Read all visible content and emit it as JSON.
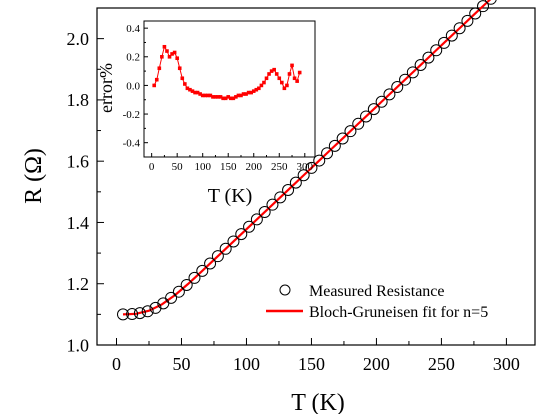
{
  "chart_data": [
    {
      "type": "scatter",
      "xlabel": "T (K)",
      "ylabel": "R (Ω)",
      "xlim": [
        -15,
        322
      ],
      "ylim": [
        1.0,
        2.1
      ],
      "xticks": [
        "0",
        "50",
        "100",
        "150",
        "200",
        "250",
        "300"
      ],
      "yticks": [
        "1.0",
        "1.2",
        "1.4",
        "1.6",
        "1.8",
        "2.0"
      ],
      "grid": false,
      "legend_position": "bottom-right",
      "series": [
        {
          "name": "Measured Resistance",
          "marker": "open-circle",
          "color": "#000000",
          "x": [
            5,
            12,
            18,
            24,
            30,
            36,
            42,
            48,
            54,
            60,
            66,
            72,
            78,
            84,
            90,
            96,
            102,
            108,
            114,
            120,
            126,
            132,
            138,
            144,
            150,
            156,
            162,
            168,
            174,
            180,
            186,
            192,
            198,
            204,
            210,
            216,
            222,
            228,
            234,
            240,
            246,
            252,
            258,
            264,
            270,
            276,
            282,
            288,
            293
          ],
          "y": [
            1.1,
            1.101,
            1.104,
            1.11,
            1.121,
            1.136,
            1.154,
            1.174,
            1.196,
            1.219,
            1.242,
            1.266,
            1.29,
            1.314,
            1.338,
            1.362,
            1.386,
            1.41,
            1.434,
            1.458,
            1.482,
            1.506,
            1.53,
            1.554,
            1.578,
            1.602,
            1.626,
            1.65,
            1.674,
            1.698,
            1.722,
            1.746,
            1.77,
            1.794,
            1.818,
            1.842,
            1.866,
            1.89,
            1.914,
            1.938,
            1.962,
            1.986,
            2.01,
            2.034,
            2.058,
            2.082,
            2.106,
            2.13,
            2.15
          ]
        },
        {
          "name": "Bloch-Gruneisen fit for n=5",
          "marker": "line",
          "color": "#ff0000",
          "x": [
            5,
            15,
            25,
            35,
            45,
            55,
            65,
            75,
            85,
            95,
            105,
            115,
            125,
            135,
            145,
            155,
            165,
            175,
            185,
            195,
            205,
            215,
            225,
            235,
            245,
            255,
            265,
            275,
            285,
            293
          ],
          "y": [
            1.1,
            1.102,
            1.112,
            1.133,
            1.163,
            1.199,
            1.238,
            1.278,
            1.318,
            1.358,
            1.398,
            1.438,
            1.478,
            1.518,
            1.558,
            1.598,
            1.638,
            1.678,
            1.718,
            1.758,
            1.798,
            1.838,
            1.878,
            1.918,
            1.958,
            1.998,
            2.038,
            2.078,
            2.118,
            2.15
          ]
        }
      ]
    },
    {
      "type": "scatter",
      "xlabel": "T (K)",
      "ylabel": "error%",
      "xlim": [
        -15,
        320
      ],
      "ylim": [
        -0.5,
        0.45
      ],
      "xticks": [
        "0",
        "50",
        "100",
        "150",
        "200",
        "250",
        "300"
      ],
      "yticks": [
        "-0.4",
        "-0.2",
        "0.0",
        "0.2",
        "0.4"
      ],
      "grid": false,
      "series": [
        {
          "marker": "filled-square-line",
          "color": "#ff0000",
          "x": [
            5,
            10,
            15,
            20,
            25,
            30,
            35,
            40,
            45,
            50,
            55,
            60,
            65,
            70,
            75,
            80,
            85,
            90,
            95,
            100,
            105,
            110,
            115,
            120,
            125,
            130,
            135,
            140,
            145,
            150,
            155,
            160,
            165,
            170,
            175,
            180,
            185,
            190,
            195,
            200,
            205,
            210,
            215,
            220,
            225,
            230,
            235,
            240,
            245,
            250,
            255,
            260,
            265,
            270,
            275,
            280,
            285,
            290
          ],
          "y": [
            0.0,
            0.04,
            0.12,
            0.2,
            0.27,
            0.24,
            0.2,
            0.22,
            0.23,
            0.19,
            0.12,
            0.05,
            0.01,
            -0.02,
            -0.03,
            -0.04,
            -0.05,
            -0.05,
            -0.06,
            -0.07,
            -0.07,
            -0.07,
            -0.07,
            -0.08,
            -0.08,
            -0.08,
            -0.08,
            -0.09,
            -0.09,
            -0.08,
            -0.09,
            -0.09,
            -0.08,
            -0.07,
            -0.07,
            -0.06,
            -0.06,
            -0.05,
            -0.05,
            -0.04,
            -0.03,
            -0.02,
            0.0,
            0.02,
            0.05,
            0.08,
            0.1,
            0.11,
            0.08,
            0.05,
            0.02,
            -0.02,
            0.0,
            0.08,
            0.14,
            0.05,
            0.03,
            0.09
          ]
        }
      ]
    }
  ]
}
